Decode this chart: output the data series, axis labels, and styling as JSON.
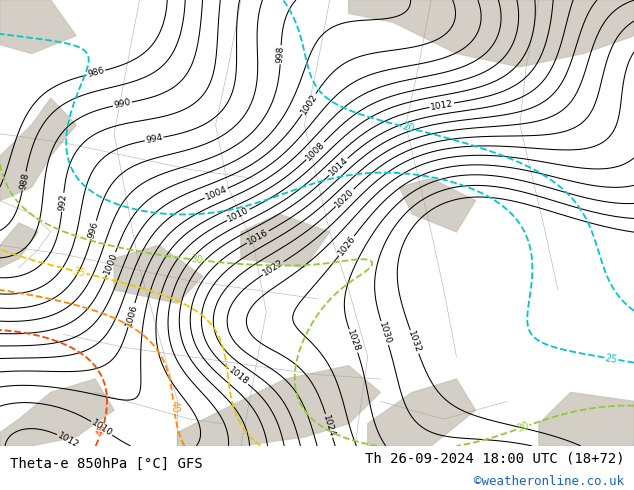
{
  "title_left": "Theta-e 850hPa [°C] GFS",
  "title_right": "Th 26-09-2024 18:00 UTC (18+72)",
  "title_right2": "©weatheronline.co.uk",
  "bg_color": "#c8e89a",
  "footer_bg": "#ffffff",
  "footer_font_size": 10,
  "pressure_contour_color": "#000000",
  "theta_colors": {
    "20": "#00c8d2",
    "25": "#00c8c8",
    "30": "#90cc30",
    "35": "#e8c800",
    "40": "#ff8800",
    "45": "#ff4400"
  },
  "pressure_levels": [
    986,
    988,
    990,
    992,
    994,
    996,
    998,
    1000,
    1002,
    1004,
    1006,
    1008,
    1010,
    1012,
    1014,
    1016,
    1018,
    1020,
    1022,
    1024,
    1026,
    1028,
    1030,
    1032
  ],
  "theta_levels": [
    20,
    25,
    30,
    35,
    40,
    45
  ]
}
